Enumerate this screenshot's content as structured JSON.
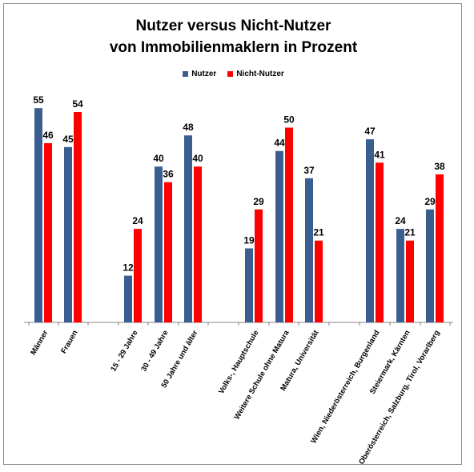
{
  "chart_data": {
    "type": "bar",
    "title_line1": "Nutzer versus Nicht-Nutzer",
    "title_line2": "von Immobilienmaklern in Prozent",
    "categories": [
      "Männer",
      "Frauen",
      "15 - 29 Jahre",
      "30 - 49 Jahre",
      "50 Jahre und älter",
      "Volks-, Hauptschule",
      "Weitere Schule ohne Matura",
      "Matura, Universität",
      "Wien, Niederösterreich, Burgenland",
      "Steiermark, Kärnten",
      "Oberösterreich, Salzburg, Tirol, Vorarlberg"
    ],
    "series": [
      {
        "name": "Nutzer",
        "color": "#3b5e91",
        "values": [
          55,
          45,
          12,
          40,
          48,
          19,
          44,
          37,
          47,
          24,
          29
        ]
      },
      {
        "name": "Nicht-Nutzer",
        "color": "#ff0000",
        "values": [
          46,
          54,
          24,
          36,
          40,
          29,
          50,
          21,
          41,
          21,
          38
        ]
      }
    ],
    "ylim": [
      0,
      60
    ],
    "grid": false,
    "legend_position": "top"
  }
}
